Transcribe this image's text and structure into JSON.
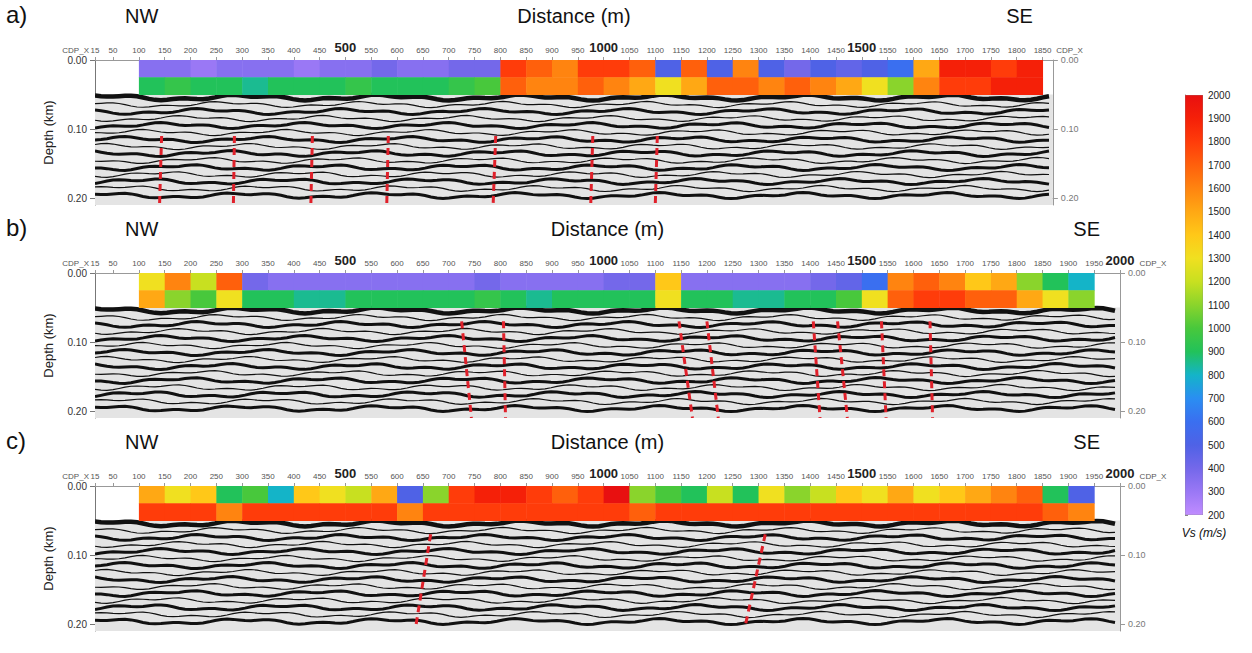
{
  "chart_data": [
    {
      "type": "seismic_section",
      "label": "a)",
      "title": "Distance (m)",
      "left_label": "NW",
      "right_label": "SE",
      "ylabel": "Depth (km)",
      "ruler_label": "CDP_X",
      "grid": true,
      "xlim": [
        15,
        1870
      ],
      "xticks": [
        15,
        50,
        100,
        150,
        200,
        250,
        300,
        350,
        400,
        450,
        500,
        550,
        600,
        650,
        700,
        750,
        800,
        850,
        900,
        950,
        1000,
        1050,
        1100,
        1150,
        1200,
        1250,
        1300,
        1350,
        1400,
        1450,
        1500,
        1550,
        1600,
        1650,
        1700,
        1750,
        1800,
        1850
      ],
      "distance_ticks": [
        500,
        1000,
        1500
      ],
      "ylim": [
        0,
        0.21
      ],
      "yticks": [
        {
          "value": 0,
          "label": "0.00"
        },
        {
          "value": 0.1,
          "label": "0.10"
        },
        {
          "value": 0.2,
          "label": "0.20"
        }
      ],
      "vs_x_edges": [
        100,
        150,
        200,
        250,
        300,
        350,
        400,
        450,
        500,
        550,
        600,
        650,
        700,
        750,
        800,
        850,
        900,
        950,
        1000,
        1050,
        1100,
        1150,
        1200,
        1250,
        1300,
        1350,
        1400,
        1450,
        1500,
        1550,
        1600,
        1650,
        1700,
        1750,
        1800,
        1850
      ],
      "vs_depth_edges": [
        0,
        0.025,
        0.05
      ],
      "vs": [
        [
          350,
          350,
          300,
          350,
          350,
          350,
          300,
          350,
          350,
          400,
          350,
          350,
          400,
          400,
          1800,
          1700,
          1600,
          1800,
          1800,
          1700,
          500,
          1700,
          500,
          1600,
          500,
          400,
          500,
          450,
          500,
          600,
          1500,
          1900,
          1900,
          1800,
          1900
        ],
        [
          900,
          950,
          900,
          900,
          850,
          900,
          900,
          900,
          950,
          900,
          900,
          900,
          950,
          1000,
          1700,
          1600,
          1600,
          1700,
          1600,
          1500,
          1300,
          1500,
          1700,
          1700,
          1600,
          1700,
          1600,
          1500,
          1300,
          1100,
          1600,
          1800,
          1800,
          1900,
          1900
        ]
      ],
      "faults": [
        {
          "x": [
            144,
            140
          ],
          "depth": [
            0.11,
            0.21
          ]
        },
        {
          "x": [
            285,
            283
          ],
          "depth": [
            0.11,
            0.21
          ]
        },
        {
          "x": [
            436,
            433
          ],
          "depth": [
            0.11,
            0.21
          ]
        },
        {
          "x": [
            583,
            580
          ],
          "depth": [
            0.11,
            0.21
          ]
        },
        {
          "x": [
            791,
            786
          ],
          "depth": [
            0.11,
            0.21
          ]
        },
        {
          "x": [
            979,
            975
          ],
          "depth": [
            0.11,
            0.21
          ]
        },
        {
          "x": [
            1104,
            1100
          ],
          "depth": [
            0.11,
            0.21
          ]
        }
      ]
    },
    {
      "type": "seismic_section",
      "label": "b)",
      "title": "Distance (m)",
      "left_label": "NW",
      "right_label": "SE",
      "ylabel": "Depth (km)",
      "ruler_label": "CDP_X",
      "grid": true,
      "xlim": [
        15,
        2000
      ],
      "xticks": [
        15,
        50,
        100,
        150,
        200,
        250,
        300,
        350,
        400,
        450,
        500,
        550,
        600,
        650,
        700,
        750,
        800,
        850,
        900,
        950,
        1000,
        1050,
        1100,
        1150,
        1200,
        1250,
        1300,
        1350,
        1400,
        1450,
        1500,
        1550,
        1600,
        1650,
        1700,
        1750,
        1800,
        1850,
        1900,
        1950,
        2000
      ],
      "distance_ticks": [
        500,
        1000,
        1500,
        2000
      ],
      "ylim": [
        0,
        0.21
      ],
      "yticks": [
        {
          "value": 0,
          "label": "0.00"
        },
        {
          "value": 0.1,
          "label": "0.10"
        },
        {
          "value": 0.2,
          "label": "0.20"
        }
      ],
      "vs_x_edges": [
        100,
        150,
        200,
        250,
        300,
        350,
        400,
        450,
        500,
        550,
        600,
        650,
        700,
        750,
        800,
        850,
        900,
        950,
        1000,
        1050,
        1100,
        1150,
        1200,
        1250,
        1300,
        1350,
        1400,
        1450,
        1500,
        1550,
        1600,
        1650,
        1700,
        1750,
        1800,
        1850,
        1900,
        1950
      ],
      "vs_depth_edges": [
        0,
        0.025,
        0.05
      ],
      "vs": [
        [
          1300,
          1600,
          1200,
          1700,
          400,
          350,
          350,
          350,
          350,
          350,
          350,
          350,
          350,
          400,
          350,
          350,
          350,
          350,
          400,
          400,
          1400,
          350,
          350,
          350,
          350,
          350,
          400,
          450,
          600,
          1600,
          1700,
          1600,
          1400,
          1500,
          1100,
          900,
          800
        ],
        [
          1500,
          1100,
          1000,
          1300,
          900,
          900,
          850,
          850,
          900,
          900,
          900,
          900,
          900,
          950,
          900,
          850,
          900,
          900,
          900,
          900,
          1300,
          900,
          900,
          850,
          850,
          900,
          900,
          1000,
          1300,
          1700,
          1800,
          1800,
          1700,
          1700,
          1500,
          1300,
          1100
        ]
      ],
      "faults": [
        {
          "x": [
            725,
            744
          ],
          "depth": [
            0.07,
            0.21
          ]
        },
        {
          "x": [
            806,
            810
          ],
          "depth": [
            0.07,
            0.21
          ]
        },
        {
          "x": [
            1146,
            1172
          ],
          "depth": [
            0.07,
            0.21
          ]
        },
        {
          "x": [
            1200,
            1222
          ],
          "depth": [
            0.07,
            0.21
          ]
        },
        {
          "x": [
            1406,
            1419
          ],
          "depth": [
            0.07,
            0.21
          ]
        },
        {
          "x": [
            1453,
            1472
          ],
          "depth": [
            0.07,
            0.21
          ]
        },
        {
          "x": [
            1538,
            1547
          ],
          "depth": [
            0.07,
            0.21
          ]
        },
        {
          "x": [
            1632,
            1637
          ],
          "depth": [
            0.07,
            0.21
          ]
        }
      ]
    },
    {
      "type": "seismic_section",
      "label": "c)",
      "title": "Distance (m)",
      "left_label": "NW",
      "right_label": "SE",
      "ylabel": "Depth (km)",
      "ruler_label": "CDP_X",
      "grid": true,
      "xlim": [
        15,
        2000
      ],
      "xticks": [
        15,
        50,
        100,
        150,
        200,
        250,
        300,
        350,
        400,
        450,
        500,
        550,
        600,
        650,
        700,
        750,
        800,
        850,
        900,
        950,
        1000,
        1050,
        1100,
        1150,
        1200,
        1250,
        1300,
        1350,
        1400,
        1450,
        1500,
        1550,
        1600,
        1650,
        1700,
        1750,
        1800,
        1850,
        1900,
        1950,
        2000
      ],
      "distance_ticks": [
        500,
        1000,
        1500,
        2000
      ],
      "ylim": [
        0,
        0.21
      ],
      "yticks": [
        {
          "value": 0,
          "label": "0.00"
        },
        {
          "value": 0.1,
          "label": "0.10"
        },
        {
          "value": 0.2,
          "label": "0.20"
        }
      ],
      "vs_x_edges": [
        100,
        150,
        200,
        250,
        300,
        350,
        400,
        450,
        500,
        550,
        600,
        650,
        700,
        750,
        800,
        850,
        900,
        950,
        1000,
        1050,
        1100,
        1150,
        1200,
        1250,
        1300,
        1350,
        1400,
        1450,
        1500,
        1550,
        1600,
        1650,
        1700,
        1750,
        1800,
        1850,
        1900,
        1950
      ],
      "vs_depth_edges": [
        0,
        0.025,
        0.05
      ],
      "vs": [
        [
          1500,
          1300,
          1400,
          900,
          1000,
          800,
          1400,
          1300,
          1200,
          1500,
          500,
          1100,
          1800,
          1900,
          1900,
          1800,
          1700,
          1800,
          2000,
          1100,
          1000,
          900,
          1200,
          900,
          1300,
          1100,
          1200,
          1400,
          1300,
          1500,
          1300,
          1400,
          1500,
          1600,
          1700,
          900,
          500
        ],
        [
          1800,
          1800,
          1800,
          1600,
          1800,
          1800,
          1800,
          1800,
          1800,
          1800,
          1600,
          1800,
          1800,
          1800,
          1800,
          1800,
          1800,
          1800,
          1800,
          1700,
          1800,
          1800,
          1800,
          1800,
          1800,
          1800,
          1800,
          1800,
          1800,
          1800,
          1800,
          1800,
          1800,
          1800,
          1800,
          1700,
          1600
        ]
      ],
      "faults": [
        {
          "x": [
            665,
            637
          ],
          "depth": [
            0.07,
            0.2
          ]
        },
        {
          "x": [
            1313,
            1275
          ],
          "depth": [
            0.07,
            0.2
          ]
        }
      ]
    }
  ],
  "colorbar": {
    "label": "Vs (m/s)",
    "range": [
      200,
      2000
    ],
    "ticks": [
      200,
      300,
      400,
      500,
      600,
      700,
      800,
      900,
      1000,
      1100,
      1200,
      1300,
      1400,
      1500,
      1600,
      1700,
      1800,
      1900,
      2000
    ],
    "colors": [
      "#c08cff",
      "#9a78f5",
      "#7468ea",
      "#4f62e6",
      "#3a6ff0",
      "#2a8ef2",
      "#14b4c8",
      "#22c25a",
      "#48c83c",
      "#8ad42c",
      "#c8e020",
      "#f0e020",
      "#ffc818",
      "#ffa814",
      "#ff8410",
      "#ff600c",
      "#ff3c0a",
      "#f52008",
      "#e81010"
    ]
  }
}
